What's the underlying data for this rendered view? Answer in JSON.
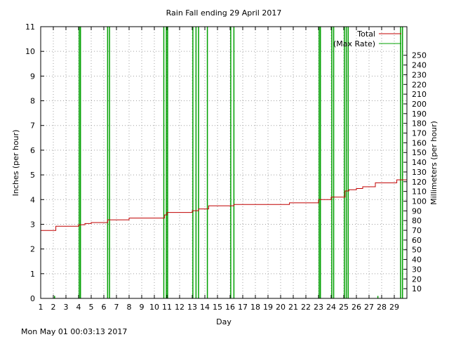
{
  "chart_data": {
    "type": "line",
    "title": "Rain Fall ending 29 April 2017",
    "xlabel": "Day",
    "ylabel": "Inches (per hour)",
    "y2label": "Millimeters (per hour)",
    "xlim": [
      1,
      30
    ],
    "ylim": [
      0,
      11
    ],
    "y2lim": [
      0,
      279.4
    ],
    "x_ticks": [
      1,
      2,
      3,
      4,
      5,
      6,
      7,
      8,
      9,
      10,
      11,
      12,
      13,
      14,
      15,
      16,
      17,
      18,
      19,
      20,
      21,
      22,
      23,
      24,
      25,
      26,
      27,
      28,
      29
    ],
    "y_ticks": [
      0,
      1,
      2,
      3,
      4,
      5,
      6,
      7,
      8,
      9,
      10,
      11
    ],
    "y2_ticks": [
      10,
      20,
      30,
      40,
      50,
      60,
      70,
      80,
      90,
      100,
      110,
      120,
      130,
      140,
      150,
      160,
      170,
      180,
      190,
      200,
      210,
      220,
      230,
      240,
      250
    ],
    "grid": true,
    "legend_position": "top-right",
    "footer": "Mon May 01 00:03:13 2017",
    "series": [
      {
        "name": "Total",
        "color": "#c00000",
        "x": [
          1,
          2.2,
          4.0,
          4.5,
          5.0,
          6.3,
          8.0,
          10.8,
          11.0,
          13.0,
          13.5,
          14.3,
          16.3,
          20.5,
          20.7,
          23.0,
          24.0,
          25.1,
          25.4,
          26.0,
          26.5,
          27.5,
          29.2,
          30
        ],
        "y": [
          2.75,
          2.92,
          2.98,
          3.03,
          3.07,
          3.18,
          3.25,
          3.38,
          3.48,
          3.55,
          3.62,
          3.75,
          3.8,
          3.8,
          3.87,
          4.0,
          4.1,
          4.35,
          4.4,
          4.45,
          4.52,
          4.68,
          4.8,
          4.8
        ]
      },
      {
        "name": "(Max Rate)",
        "color": "#00a000",
        "spikes": [
          {
            "x": 2.1,
            "y": 0.1
          },
          {
            "x": 4.05,
            "y": 11
          },
          {
            "x": 4.15,
            "y": 11
          },
          {
            "x": 6.3,
            "y": 11
          },
          {
            "x": 6.45,
            "y": 11
          },
          {
            "x": 10.75,
            "y": 11
          },
          {
            "x": 10.95,
            "y": 11
          },
          {
            "x": 11.05,
            "y": 11
          },
          {
            "x": 13.05,
            "y": 11
          },
          {
            "x": 13.3,
            "y": 11
          },
          {
            "x": 13.5,
            "y": 11
          },
          {
            "x": 14.2,
            "y": 11
          },
          {
            "x": 16.05,
            "y": 11
          },
          {
            "x": 16.3,
            "y": 11
          },
          {
            "x": 23.05,
            "y": 11
          },
          {
            "x": 23.15,
            "y": 11
          },
          {
            "x": 24.05,
            "y": 11
          },
          {
            "x": 24.2,
            "y": 11
          },
          {
            "x": 25.05,
            "y": 11
          },
          {
            "x": 25.2,
            "y": 11
          },
          {
            "x": 25.35,
            "y": 11
          },
          {
            "x": 27.7,
            "y": 0.1
          },
          {
            "x": 29.5,
            "y": 11
          },
          {
            "x": 29.65,
            "y": 11
          }
        ]
      }
    ]
  }
}
